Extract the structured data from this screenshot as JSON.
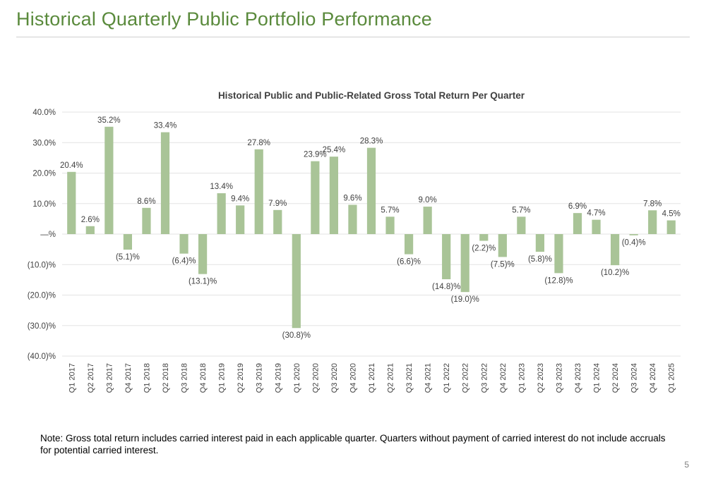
{
  "page": {
    "title": "Historical Quarterly Public Portfolio Performance",
    "note": "Note: Gross total return includes carried interest paid in each applicable quarter.  Quarters without payment of carried interest do not include accruals for potential carried interest.",
    "page_number": "5"
  },
  "colors": {
    "title": "#5a8a3c",
    "bar": "#a9c497",
    "grid": "#e3e3e3",
    "text": "#404040"
  },
  "chart_data": {
    "type": "bar",
    "title": "Historical Public and Public-Related Gross Total Return Per Quarter",
    "xlabel": "",
    "ylabel": "",
    "ylim": [
      -40,
      40
    ],
    "yticks": [
      40,
      30,
      20,
      10,
      0,
      -10,
      -20,
      -30,
      -40
    ],
    "ytick_labels": [
      "40.0%",
      "30.0%",
      "20.0%",
      "10.0%",
      "—%",
      "(10.0)%",
      "(20.0)%",
      "(30.0)%",
      "(40.0)%"
    ],
    "grid": true,
    "categories": [
      "Q1 2017",
      "Q2 2017",
      "Q3 2017",
      "Q4 2017",
      "Q1 2018",
      "Q2 2018",
      "Q3 2018",
      "Q4 2018",
      "Q1 2019",
      "Q2 2019",
      "Q3 2019",
      "Q4 2019",
      "Q1 2020",
      "Q2 2020",
      "Q3 2020",
      "Q4 2020",
      "Q1 2021",
      "Q2 2021",
      "Q3 2021",
      "Q4 2021",
      "Q1 2022",
      "Q2 2022",
      "Q3 2022",
      "Q4 2022",
      "Q1 2023",
      "Q2 2023",
      "Q3 2023",
      "Q4 2023",
      "Q1 2024",
      "Q2 2024",
      "Q3 2024",
      "Q4 2024",
      "Q1 2025"
    ],
    "values": [
      20.4,
      2.6,
      35.2,
      -5.1,
      8.6,
      33.4,
      -6.4,
      -13.1,
      13.4,
      9.4,
      27.8,
      7.9,
      -30.8,
      23.9,
      25.4,
      9.6,
      28.3,
      5.7,
      -6.6,
      9.0,
      -14.8,
      -19.0,
      -2.2,
      -7.5,
      5.7,
      -5.8,
      -12.8,
      6.9,
      4.7,
      -10.2,
      -0.4,
      7.8,
      4.5
    ],
    "data_labels": [
      "20.4%",
      "2.6%",
      "35.2%",
      "(5.1)%",
      "8.6%",
      "33.4%",
      "(6.4)%",
      "(13.1)%",
      "13.4%",
      "9.4%",
      "27.8%",
      "7.9%",
      "(30.8)%",
      "23.9%",
      "25.4%",
      "9.6%",
      "28.3%",
      "5.7%",
      "(6.6)%",
      "9.0%",
      "(14.8)%",
      "(19.0)%",
      "(2.2)%",
      "(7.5)%",
      "5.7%",
      "(5.8)%",
      "(12.8)%",
      "6.9%",
      "4.7%",
      "(10.2)%",
      "(0.4)%",
      "7.8%",
      "4.5%"
    ]
  }
}
